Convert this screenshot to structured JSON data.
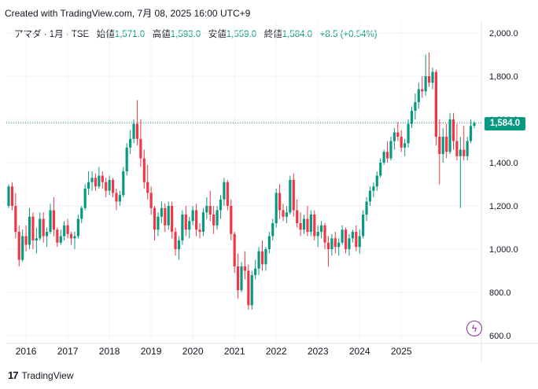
{
  "header": {
    "created_text": "Created with TradingView.com, 7月 08, 2025 16:00 UTC+9"
  },
  "legend": {
    "symbol": "アマダ · 1月 · TSE",
    "open_label": "始値",
    "open_value": "1,571.0",
    "high_label": "高値",
    "high_value": "1,593.0",
    "low_label": "安値",
    "low_value": "1,559.0",
    "close_label": "終値",
    "close_value": "1,584.0",
    "change": "+8.5 (+0.54%)"
  },
  "price_label": "1,584.0",
  "footer": {
    "brand": "TradingView"
  },
  "colors": {
    "up": "#089981",
    "down": "#f23645",
    "grid": "#f0f3fa",
    "text": "#131722"
  },
  "chart_data": {
    "type": "candlestick",
    "interval": "monthly",
    "y_ticks": [
      "2,000.0",
      "1,800.0",
      "1,600.0",
      "1,400.0",
      "1,200.0",
      "1,000.0",
      "800.0",
      "600.0"
    ],
    "y_tick_values": [
      2000,
      1800,
      1600,
      1400,
      1200,
      1000,
      800,
      600
    ],
    "x_ticks": [
      "2016",
      "2017",
      "2018",
      "2019",
      "2020",
      "2021",
      "2022",
      "2023",
      "2024",
      "2025"
    ],
    "ylim": [
      600,
      2010
    ],
    "last_price": 1584,
    "series": [
      {
        "name": "アマダ",
        "ohlc": [
          [
            1200,
            1300,
            1190,
            1290
          ],
          [
            1290,
            1310,
            1180,
            1200
          ],
          [
            1200,
            1260,
            1050,
            1080
          ],
          [
            1080,
            1110,
            920,
            950
          ],
          [
            950,
            1090,
            940,
            1060
          ],
          [
            1060,
            1110,
            990,
            1020
          ],
          [
            1020,
            1190,
            1000,
            1150
          ],
          [
            1150,
            1170,
            1000,
            1040
          ],
          [
            1040,
            1100,
            980,
            1050
          ],
          [
            1050,
            1170,
            1040,
            1140
          ],
          [
            1140,
            1170,
            1030,
            1060
          ],
          [
            1060,
            1100,
            1010,
            1080
          ],
          [
            1080,
            1210,
            1070,
            1180
          ],
          [
            1180,
            1240,
            1060,
            1090
          ],
          [
            1090,
            1100,
            1010,
            1030
          ],
          [
            1030,
            1090,
            1020,
            1060
          ],
          [
            1060,
            1130,
            1040,
            1110
          ],
          [
            1110,
            1140,
            1050,
            1070
          ],
          [
            1070,
            1080,
            1020,
            1050
          ],
          [
            1050,
            1080,
            1000,
            1060
          ],
          [
            1060,
            1160,
            1050,
            1140
          ],
          [
            1140,
            1200,
            1120,
            1190
          ],
          [
            1190,
            1300,
            1180,
            1280
          ],
          [
            1280,
            1360,
            1250,
            1310
          ],
          [
            1310,
            1360,
            1270,
            1330
          ],
          [
            1330,
            1350,
            1270,
            1290
          ],
          [
            1290,
            1380,
            1280,
            1340
          ],
          [
            1340,
            1360,
            1280,
            1310
          ],
          [
            1310,
            1330,
            1240,
            1270
          ],
          [
            1270,
            1340,
            1250,
            1320
          ],
          [
            1320,
            1330,
            1240,
            1260
          ],
          [
            1260,
            1280,
            1180,
            1220
          ],
          [
            1220,
            1270,
            1200,
            1250
          ],
          [
            1250,
            1380,
            1240,
            1360
          ],
          [
            1360,
            1490,
            1340,
            1470
          ],
          [
            1470,
            1550,
            1440,
            1510
          ],
          [
            1510,
            1600,
            1490,
            1580
          ],
          [
            1580,
            1690,
            1480,
            1510
          ],
          [
            1510,
            1600,
            1380,
            1420
          ],
          [
            1420,
            1460,
            1280,
            1310
          ],
          [
            1310,
            1390,
            1230,
            1260
          ],
          [
            1260,
            1290,
            1160,
            1190
          ],
          [
            1190,
            1200,
            1040,
            1090
          ],
          [
            1090,
            1170,
            1060,
            1150
          ],
          [
            1150,
            1220,
            1120,
            1190
          ],
          [
            1190,
            1210,
            1080,
            1110
          ],
          [
            1110,
            1220,
            1090,
            1200
          ],
          [
            1200,
            1220,
            1050,
            1080
          ],
          [
            1080,
            1100,
            970,
            1000
          ],
          [
            1000,
            1060,
            950,
            1040
          ],
          [
            1040,
            1180,
            1020,
            1160
          ],
          [
            1160,
            1200,
            1060,
            1090
          ],
          [
            1090,
            1150,
            1050,
            1130
          ],
          [
            1130,
            1200,
            1110,
            1180
          ],
          [
            1180,
            1210,
            1060,
            1090
          ],
          [
            1090,
            1120,
            1050,
            1080
          ],
          [
            1080,
            1190,
            1060,
            1170
          ],
          [
            1170,
            1240,
            1140,
            1200
          ],
          [
            1200,
            1270,
            1130,
            1160
          ],
          [
            1160,
            1200,
            1070,
            1110
          ],
          [
            1110,
            1200,
            1090,
            1180
          ],
          [
            1180,
            1250,
            1140,
            1230
          ],
          [
            1230,
            1330,
            1200,
            1310
          ],
          [
            1310,
            1320,
            1180,
            1200
          ],
          [
            1200,
            1230,
            1040,
            1070
          ],
          [
            1070,
            1080,
            890,
            920
          ],
          [
            920,
            980,
            770,
            810
          ],
          [
            810,
            940,
            800,
            920
          ],
          [
            920,
            990,
            860,
            900
          ],
          [
            900,
            930,
            720,
            740
          ],
          [
            740,
            900,
            720,
            880
          ],
          [
            880,
            950,
            860,
            910
          ],
          [
            910,
            1010,
            880,
            990
          ],
          [
            990,
            1040,
            900,
            930
          ],
          [
            930,
            1010,
            900,
            1000
          ],
          [
            1000,
            1080,
            980,
            1060
          ],
          [
            1060,
            1140,
            1040,
            1120
          ],
          [
            1120,
            1280,
            1100,
            1260
          ],
          [
            1260,
            1300,
            1140,
            1180
          ],
          [
            1180,
            1210,
            1130,
            1150
          ],
          [
            1150,
            1200,
            1120,
            1170
          ],
          [
            1170,
            1340,
            1160,
            1320
          ],
          [
            1320,
            1350,
            1150,
            1180
          ],
          [
            1180,
            1230,
            1100,
            1120
          ],
          [
            1120,
            1170,
            1060,
            1090
          ],
          [
            1090,
            1160,
            1070,
            1140
          ],
          [
            1140,
            1200,
            1060,
            1080
          ],
          [
            1080,
            1180,
            1060,
            1160
          ],
          [
            1160,
            1180,
            1040,
            1060
          ],
          [
            1060,
            1110,
            1010,
            1080
          ],
          [
            1080,
            1130,
            1050,
            1110
          ],
          [
            1110,
            1120,
            1000,
            1030
          ],
          [
            1030,
            1060,
            920,
            1000
          ],
          [
            1000,
            1070,
            970,
            1050
          ],
          [
            1050,
            1080,
            980,
            1010
          ],
          [
            1010,
            1050,
            970,
            1030
          ],
          [
            1030,
            1110,
            1020,
            1090
          ],
          [
            1090,
            1100,
            980,
            1000
          ],
          [
            1000,
            1070,
            970,
            1050
          ],
          [
            1050,
            1090,
            1030,
            1080
          ],
          [
            1080,
            1110,
            990,
            1010
          ],
          [
            1010,
            1090,
            980,
            1060
          ],
          [
            1060,
            1180,
            1050,
            1160
          ],
          [
            1160,
            1240,
            1130,
            1220
          ],
          [
            1220,
            1290,
            1200,
            1270
          ],
          [
            1270,
            1310,
            1240,
            1290
          ],
          [
            1290,
            1360,
            1270,
            1340
          ],
          [
            1340,
            1420,
            1330,
            1400
          ],
          [
            1400,
            1460,
            1390,
            1450
          ],
          [
            1450,
            1500,
            1400,
            1420
          ],
          [
            1420,
            1520,
            1410,
            1500
          ],
          [
            1500,
            1560,
            1460,
            1540
          ],
          [
            1540,
            1590,
            1500,
            1520
          ],
          [
            1520,
            1550,
            1450,
            1470
          ],
          [
            1470,
            1510,
            1430,
            1490
          ],
          [
            1490,
            1600,
            1470,
            1580
          ],
          [
            1580,
            1660,
            1560,
            1640
          ],
          [
            1640,
            1720,
            1600,
            1680
          ],
          [
            1680,
            1770,
            1650,
            1740
          ],
          [
            1740,
            1800,
            1700,
            1730
          ],
          [
            1730,
            1900,
            1710,
            1800
          ],
          [
            1800,
            1910,
            1750,
            1770
          ],
          [
            1770,
            1840,
            1740,
            1820
          ],
          [
            1820,
            1830,
            1480,
            1520
          ],
          [
            1520,
            1600,
            1300,
            1440
          ],
          [
            1440,
            1560,
            1400,
            1520
          ],
          [
            1520,
            1580,
            1420,
            1450
          ],
          [
            1450,
            1630,
            1440,
            1600
          ],
          [
            1600,
            1630,
            1460,
            1500
          ],
          [
            1500,
            1580,
            1410,
            1430
          ],
          [
            1430,
            1520,
            1190,
            1460
          ],
          [
            1460,
            1570,
            1410,
            1430
          ],
          [
            1430,
            1520,
            1410,
            1500
          ],
          [
            1500,
            1600,
            1490,
            1570
          ],
          [
            1571,
            1593,
            1559,
            1584
          ]
        ]
      }
    ]
  }
}
